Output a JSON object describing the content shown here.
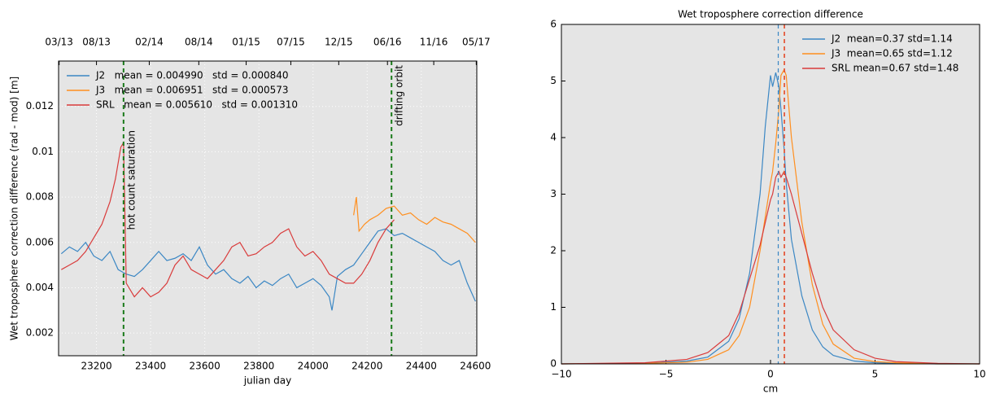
{
  "chart_data": [
    {
      "type": "line",
      "ylabel": "Wet troposphere correction  difference (rad - mod) [m]",
      "xlabel": "julian day",
      "xlim": [
        23060,
        24605
      ],
      "ylim": [
        0.001,
        0.014
      ],
      "xticks": [
        23200,
        23400,
        23600,
        23800,
        24000,
        24200,
        24400,
        24600
      ],
      "yticks": [
        0.002,
        0.004,
        0.006,
        0.008,
        0.01,
        0.012
      ],
      "x2ticks": [
        {
          "value": 23062,
          "label": "03/13"
        },
        {
          "value": 23200,
          "label": "08/13"
        },
        {
          "value": 23395,
          "label": "02/14"
        },
        {
          "value": 23578,
          "label": "08/14"
        },
        {
          "value": 23753,
          "label": "01/15"
        },
        {
          "value": 23918,
          "label": "07/15"
        },
        {
          "value": 24095,
          "label": "12/15"
        },
        {
          "value": 24275,
          "label": "06/16"
        },
        {
          "value": 24446,
          "label": "11/16"
        },
        {
          "value": 24603,
          "label": "05/17"
        }
      ],
      "grid": true,
      "legend": "upper left",
      "vlines": [
        {
          "value": 23300,
          "label": "hot count saturation",
          "color": "#1a7a1a"
        },
        {
          "value": 24290,
          "label": "drifting orbit",
          "color": "#1a7a1a"
        }
      ],
      "series": [
        {
          "name": "J2   mean = 0.004990   std = 0.000840",
          "color": "#3b87c4",
          "x": [
            23070,
            23100,
            23130,
            23160,
            23190,
            23220,
            23250,
            23280,
            23310,
            23340,
            23370,
            23400,
            23430,
            23460,
            23490,
            23520,
            23550,
            23580,
            23610,
            23640,
            23670,
            23700,
            23730,
            23760,
            23790,
            23820,
            23850,
            23880,
            23910,
            23940,
            23970,
            24000,
            24030,
            24060,
            24070,
            24090,
            24120,
            24150,
            24180,
            24210,
            24240,
            24270,
            24300,
            24330,
            24360,
            24390,
            24420,
            24450,
            24480,
            24510,
            24540,
            24570,
            24600
          ],
          "values": [
            0.0055,
            0.0058,
            0.0056,
            0.006,
            0.0054,
            0.0052,
            0.0056,
            0.0048,
            0.0046,
            0.0045,
            0.0048,
            0.0052,
            0.0056,
            0.0052,
            0.0053,
            0.0055,
            0.0052,
            0.0058,
            0.005,
            0.0046,
            0.0048,
            0.0044,
            0.0042,
            0.0045,
            0.004,
            0.0043,
            0.0041,
            0.0044,
            0.0046,
            0.004,
            0.0042,
            0.0044,
            0.0041,
            0.0036,
            0.003,
            0.0045,
            0.0048,
            0.005,
            0.0055,
            0.006,
            0.0065,
            0.0066,
            0.0063,
            0.0064,
            0.0062,
            0.006,
            0.0058,
            0.0056,
            0.0052,
            0.005,
            0.0052,
            0.0042,
            0.0034
          ]
        },
        {
          "name": "J3   mean = 0.006951   std = 0.000573",
          "color": "#ff8f1f",
          "x": [
            24150,
            24160,
            24170,
            24190,
            24210,
            24240,
            24270,
            24300,
            24330,
            24360,
            24390,
            24420,
            24450,
            24480,
            24510,
            24540,
            24570,
            24600
          ],
          "values": [
            0.0072,
            0.008,
            0.0065,
            0.0068,
            0.007,
            0.0072,
            0.0075,
            0.0076,
            0.0072,
            0.0073,
            0.007,
            0.0068,
            0.0071,
            0.0069,
            0.0068,
            0.0066,
            0.0064,
            0.006
          ]
        },
        {
          "name": "SRL   mean = 0.005610   std = 0.001310",
          "color": "#d93b3b",
          "x": [
            23070,
            23100,
            23130,
            23160,
            23190,
            23220,
            23250,
            23270,
            23290,
            23300,
            23310,
            23340,
            23370,
            23400,
            23430,
            23460,
            23490,
            23520,
            23550,
            23580,
            23610,
            23640,
            23670,
            23700,
            23730,
            23760,
            23790,
            23820,
            23850,
            23880,
            23910,
            23940,
            23970,
            24000,
            24030,
            24060,
            24090,
            24120,
            24150,
            24180,
            24210,
            24240,
            24270,
            24300
          ],
          "values": [
            0.0048,
            0.005,
            0.0052,
            0.0056,
            0.0062,
            0.0068,
            0.0078,
            0.0088,
            0.0102,
            0.0104,
            0.0042,
            0.0036,
            0.004,
            0.0036,
            0.0038,
            0.0042,
            0.005,
            0.0054,
            0.0048,
            0.0046,
            0.0044,
            0.0048,
            0.0052,
            0.0058,
            0.006,
            0.0054,
            0.0055,
            0.0058,
            0.006,
            0.0064,
            0.0066,
            0.0058,
            0.0054,
            0.0056,
            0.0052,
            0.0046,
            0.0044,
            0.0042,
            0.0042,
            0.0046,
            0.0052,
            0.006,
            0.0066,
            0.007
          ]
        }
      ]
    },
    {
      "type": "line",
      "title": "Wet troposphere correction difference",
      "xlabel": "cm",
      "xlim": [
        -10,
        10
      ],
      "ylim": [
        0,
        6
      ],
      "xticks": [
        {
          "value": -10,
          "label": "−10"
        },
        {
          "value": -5,
          "label": "−5"
        },
        0,
        5,
        10
      ],
      "yticks": [
        0,
        1,
        2,
        3,
        4,
        5,
        6
      ],
      "grid": false,
      "legend": "upper right",
      "vlines": [
        {
          "value": 0.37,
          "color": "#3b87c4"
        },
        {
          "value": 0.65,
          "color": "#ff8f1f"
        },
        {
          "value": 0.67,
          "color": "#d93b3b"
        }
      ],
      "series": [
        {
          "name": "J2  mean=0.37 std=1.14",
          "color": "#3b87c4",
          "x": [
            -10,
            -6,
            -4,
            -3,
            -2,
            -1.5,
            -1,
            -0.5,
            -0.25,
            0,
            0.1,
            0.25,
            0.4,
            0.5,
            0.65,
            0.75,
            1,
            1.5,
            2,
            2.5,
            3,
            4,
            5,
            6,
            8,
            10
          ],
          "values": [
            0,
            0.01,
            0.05,
            0.12,
            0.4,
            0.8,
            1.6,
            3.0,
            4.2,
            5.1,
            4.9,
            5.15,
            4.9,
            4.5,
            3.8,
            3.2,
            2.2,
            1.2,
            0.6,
            0.3,
            0.15,
            0.05,
            0.02,
            0.01,
            0,
            0
          ]
        },
        {
          "name": "J3  mean=0.65 std=1.12",
          "color": "#ff8f1f",
          "x": [
            -10,
            -6,
            -4,
            -3,
            -2,
            -1.5,
            -1,
            -0.5,
            -0.25,
            0,
            0.1,
            0.25,
            0.4,
            0.5,
            0.65,
            0.75,
            1,
            1.5,
            2,
            2.5,
            3,
            4,
            5,
            6,
            8,
            10
          ],
          "values": [
            0,
            0.01,
            0.03,
            0.08,
            0.25,
            0.5,
            1.0,
            2.0,
            2.6,
            3.2,
            3.4,
            3.9,
            4.5,
            5.1,
            5.2,
            5.1,
            4.0,
            2.5,
            1.4,
            0.7,
            0.35,
            0.1,
            0.04,
            0.02,
            0,
            0
          ]
        },
        {
          "name": "SRL mean=0.67 std=1.48",
          "color": "#d93b3b",
          "x": [
            -10,
            -6,
            -4,
            -3,
            -2,
            -1.5,
            -1,
            -0.5,
            -0.25,
            0,
            0.1,
            0.25,
            0.4,
            0.5,
            0.65,
            0.75,
            1,
            1.5,
            2,
            2.5,
            3,
            4,
            5,
            6,
            8,
            10
          ],
          "values": [
            0,
            0.02,
            0.08,
            0.2,
            0.5,
            0.9,
            1.5,
            2.1,
            2.5,
            2.9,
            3.0,
            3.3,
            3.4,
            3.3,
            3.4,
            3.3,
            3.0,
            2.3,
            1.6,
            1.0,
            0.6,
            0.25,
            0.1,
            0.04,
            0.01,
            0
          ]
        }
      ]
    }
  ]
}
